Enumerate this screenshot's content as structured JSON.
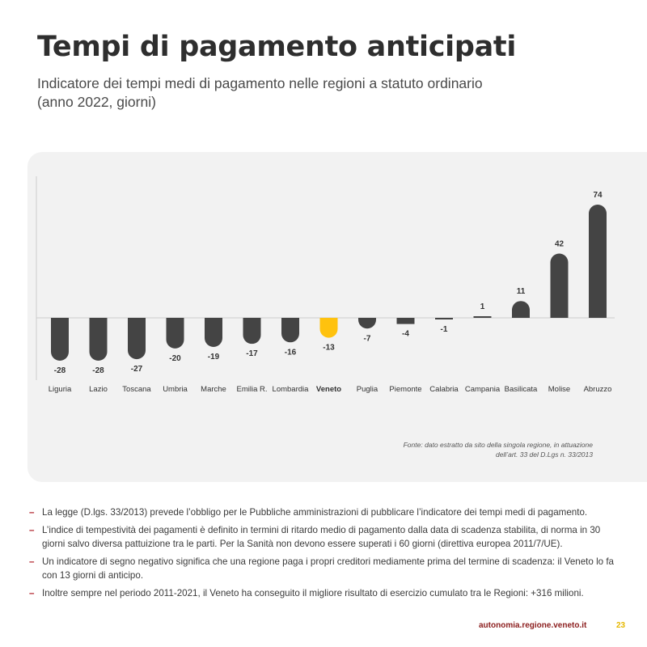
{
  "header": {
    "title": "Tempi di pagamento anticipati",
    "subtitle_line1": "Indicatore dei tempi medi di pagamento nelle regioni a statuto ordinario",
    "subtitle_line2": "(anno 2022, giorni)"
  },
  "chart_data": {
    "type": "bar",
    "title": "",
    "xlabel": "",
    "ylabel": "",
    "categories": [
      "Liguria",
      "Lazio",
      "Toscana",
      "Umbria",
      "Marche",
      "Emilia R.",
      "Lombardia",
      "Veneto",
      "Puglia",
      "Piemonte",
      "Calabria",
      "Campania",
      "Basilicata",
      "Molise",
      "Abruzzo"
    ],
    "values": [
      -28,
      -28,
      -27,
      -20,
      -19,
      -17,
      -16,
      -13,
      -7,
      -4,
      -1,
      1,
      11,
      42,
      74
    ],
    "value_labels": [
      "-28",
      "-28",
      "-27",
      "-20",
      "-19",
      "-17",
      "-16",
      "-13",
      "-7",
      "-4",
      "-1",
      "1",
      "11",
      "42",
      "74"
    ],
    "highlight": "Veneto",
    "colors": {
      "bar": "#444444",
      "highlight": "#ffc20e",
      "axis": "#cccccc"
    },
    "ylim": [
      -28,
      74
    ],
    "grid": false,
    "legend": "none"
  },
  "source": {
    "line1": "Fonte: dato estratto da sito della singola regione, in attuazione",
    "line2": "dell’art. 33 del D.Lgs n. 33/2013"
  },
  "bullets": [
    "La legge (D.lgs. 33/2013) prevede l’obbligo per le Pubbliche amministrazioni di pubblicare l’indicatore dei tempi medi di pagamento.",
    "L’indice di tempestività dei pagamenti è definito in termini di ritardo medio di pagamento dalla data di scadenza stabilita, di norma in 30 giorni salvo diversa pattuizione tra le parti. Per la Sanità non devono essere superati i 60 giorni (direttiva europea 2011/7/UE).",
    "Un indicatore di segno negativo significa che una regione paga i propri creditori mediamente prima del termine di scadenza: il Veneto lo fa con 13 giorni di anticipo.",
    "Inoltre sempre nel periodo 2011-2021, il Veneto ha conseguito il migliore risultato di esercizio cumulato tra le Regioni: +316 milioni."
  ],
  "bullet_marker": "–",
  "footer": {
    "site": "autonomia.regione.veneto.it",
    "page": "23"
  }
}
